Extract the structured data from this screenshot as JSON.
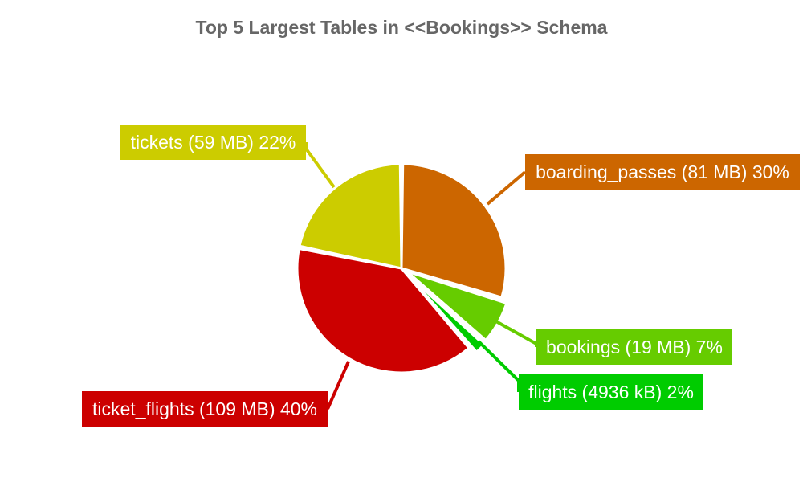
{
  "chart_data": {
    "type": "pie",
    "title": "Top 5 Largest Tables in <<Bookings>> Schema",
    "slices": [
      {
        "name": "boarding_passes",
        "size": "81 MB",
        "percent": 30,
        "color": "#cc6600"
      },
      {
        "name": "bookings",
        "size": "19 MB",
        "percent": 7,
        "color": "#66cc00"
      },
      {
        "name": "flights",
        "size": "4936 kB",
        "percent": 2,
        "color": "#00cc00"
      },
      {
        "name": "ticket_flights",
        "size": "109 MB",
        "percent": 40,
        "color": "#cc0000"
      },
      {
        "name": "tickets",
        "size": "59 MB",
        "percent": 22,
        "color": "#cccc00"
      }
    ],
    "labels": [
      "boarding_passes (81 MB) 30%",
      "bookings (19 MB) 7%",
      "flights (4936 kB) 2%",
      "ticket_flights (109 MB) 40%",
      "tickets (59 MB) 22%"
    ],
    "start_angle": "12 o'clock",
    "direction": "clockwise",
    "legend": "none"
  }
}
